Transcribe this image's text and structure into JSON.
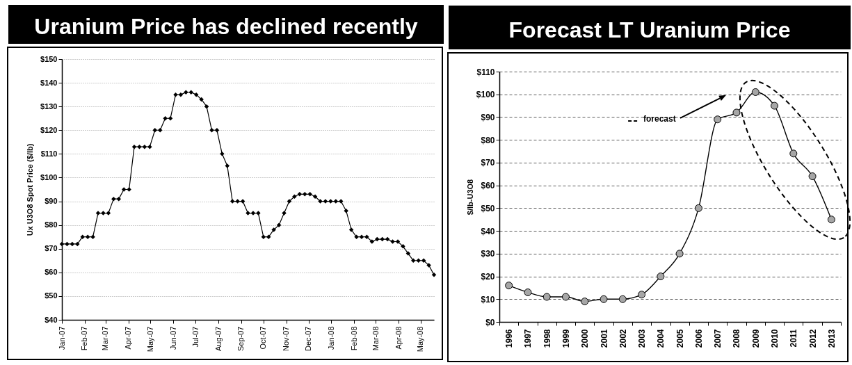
{
  "chart_data": [
    {
      "type": "line",
      "title": "Uranium Price has declined recently",
      "ylabel": "Ux U3O8 Spot Price ($/lb)",
      "x": [
        "2007-01-01",
        "2007-01-08",
        "2007-01-15",
        "2007-01-22",
        "2007-01-29",
        "2007-02-05",
        "2007-02-12",
        "2007-02-19",
        "2007-02-26",
        "2007-03-05",
        "2007-03-12",
        "2007-03-19",
        "2007-03-26",
        "2007-04-02",
        "2007-04-09",
        "2007-04-16",
        "2007-04-23",
        "2007-04-30",
        "2007-05-07",
        "2007-05-14",
        "2007-05-21",
        "2007-05-28",
        "2007-06-04",
        "2007-06-11",
        "2007-06-18",
        "2007-06-25",
        "2007-07-02",
        "2007-07-09",
        "2007-07-16",
        "2007-07-23",
        "2007-07-30",
        "2007-08-06",
        "2007-08-13",
        "2007-08-20",
        "2007-08-27",
        "2007-09-03",
        "2007-09-10",
        "2007-09-17",
        "2007-09-24",
        "2007-10-01",
        "2007-10-08",
        "2007-10-15",
        "2007-10-22",
        "2007-10-29",
        "2007-11-05",
        "2007-11-12",
        "2007-11-19",
        "2007-11-26",
        "2007-12-03",
        "2007-12-10",
        "2007-12-17",
        "2007-12-24",
        "2007-12-31",
        "2008-01-07",
        "2008-01-14",
        "2008-01-21",
        "2008-01-28",
        "2008-02-04",
        "2008-02-11",
        "2008-02-18",
        "2008-02-25",
        "2008-03-03",
        "2008-03-10",
        "2008-03-17",
        "2008-03-24",
        "2008-03-31",
        "2008-04-07",
        "2008-04-14",
        "2008-04-21",
        "2008-04-28",
        "2008-05-05",
        "2008-05-12",
        "2008-05-19"
      ],
      "values": [
        72,
        72,
        72,
        72,
        75,
        75,
        75,
        85,
        85,
        85,
        91,
        91,
        95,
        95,
        113,
        113,
        113,
        113,
        120,
        120,
        125,
        125,
        135,
        135,
        136,
        136,
        135,
        133,
        130,
        120,
        120,
        110,
        105,
        90,
        90,
        90,
        85,
        85,
        85,
        75,
        75,
        78,
        80,
        85,
        90,
        92,
        93,
        93,
        93,
        92,
        90,
        90,
        90,
        90,
        90,
        86,
        78,
        75,
        75,
        75,
        73,
        74,
        74,
        74,
        73,
        73,
        71,
        68,
        65,
        65,
        65,
        63,
        59
      ],
      "color": "#000000",
      "marker": "diamond",
      "grid": "y",
      "xlim": [
        "2007-01-01",
        "2008-05-19"
      ],
      "xticks": [
        {
          "value": "2007-01-01",
          "label": "Jan-07"
        },
        {
          "value": "2007-02-01",
          "label": "Feb-07"
        },
        {
          "value": "2007-03-01",
          "label": "Mar-07"
        },
        {
          "value": "2007-04-01",
          "label": "Apr-07"
        },
        {
          "value": "2007-05-01",
          "label": "May-07"
        },
        {
          "value": "2007-06-01",
          "label": "Jun-07"
        },
        {
          "value": "2007-07-01",
          "label": "Jul-07"
        },
        {
          "value": "2007-08-01",
          "label": "Aug-07"
        },
        {
          "value": "2007-09-01",
          "label": "Sep-07"
        },
        {
          "value": "2007-10-01",
          "label": "Oct-07"
        },
        {
          "value": "2007-11-01",
          "label": "Nov-07"
        },
        {
          "value": "2007-12-01",
          "label": "Dec-07"
        },
        {
          "value": "2008-01-01",
          "label": "Jan-08"
        },
        {
          "value": "2008-02-01",
          "label": "Feb-08"
        },
        {
          "value": "2008-03-01",
          "label": "Mar-08"
        },
        {
          "value": "2008-04-01",
          "label": "Apr-08"
        },
        {
          "value": "2008-05-01",
          "label": "May-08"
        }
      ],
      "ylim": [
        40,
        150
      ],
      "yticks": [
        {
          "value": 40,
          "label": "$40"
        },
        {
          "value": 50,
          "label": "$50"
        },
        {
          "value": 60,
          "label": "$60"
        },
        {
          "value": 70,
          "label": "$70"
        },
        {
          "value": 80,
          "label": "$80"
        },
        {
          "value": 90,
          "label": "$90"
        },
        {
          "value": 100,
          "label": "$100"
        },
        {
          "value": 110,
          "label": "$110"
        },
        {
          "value": 120,
          "label": "$120"
        },
        {
          "value": 130,
          "label": "$130"
        },
        {
          "value": 140,
          "label": "$140"
        },
        {
          "value": 150,
          "label": "$150"
        }
      ]
    },
    {
      "type": "line",
      "title": "Forecast LT Uranium Price",
      "ylabel": "$/lb-U3O8",
      "categories": [
        "1996",
        "1997",
        "1998",
        "1999",
        "2000",
        "2001",
        "2002",
        "2003",
        "2004",
        "2005",
        "2006",
        "2007",
        "2008",
        "2009",
        "2010",
        "2011",
        "2012",
        "2013"
      ],
      "values": [
        16,
        13,
        11,
        11,
        9,
        10,
        10,
        12,
        20,
        30,
        50,
        89,
        92,
        101,
        95,
        74,
        64,
        45
      ],
      "color": "#000000",
      "marker": "circle",
      "grid": "y",
      "ylim": [
        0,
        110
      ],
      "yticks": [
        {
          "value": 0,
          "label": "$0"
        },
        {
          "value": 10,
          "label": "$10"
        },
        {
          "value": 20,
          "label": "$20"
        },
        {
          "value": 30,
          "label": "$30"
        },
        {
          "value": 40,
          "label": "$40"
        },
        {
          "value": 50,
          "label": "$50"
        },
        {
          "value": 60,
          "label": "$60"
        },
        {
          "value": 70,
          "label": "$70"
        },
        {
          "value": 80,
          "label": "$80"
        },
        {
          "value": 90,
          "label": "$90"
        },
        {
          "value": 100,
          "label": "$100"
        },
        {
          "value": 110,
          "label": "$110"
        }
      ],
      "annotations": [
        "forecast"
      ]
    }
  ]
}
